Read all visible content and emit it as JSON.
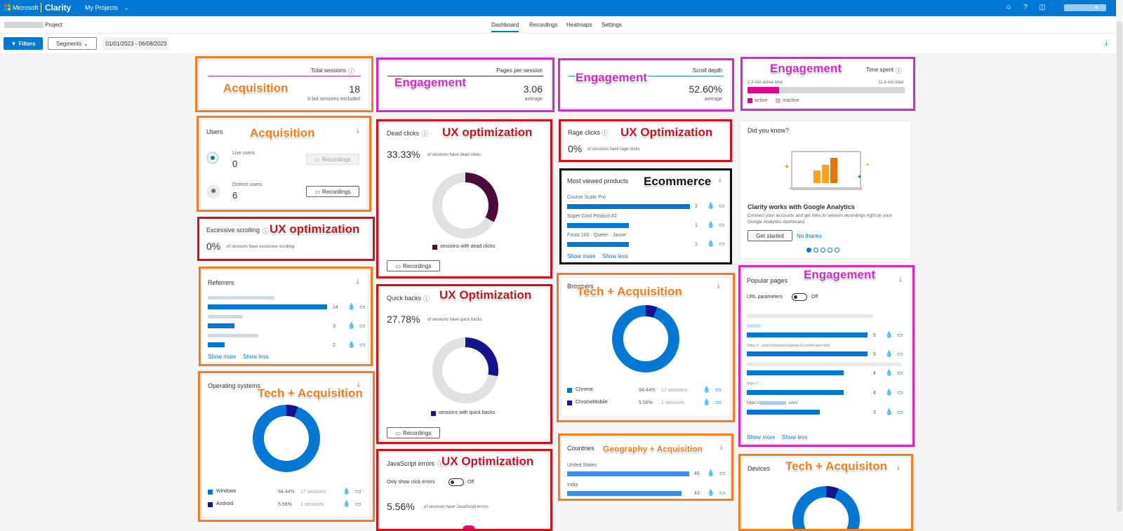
{
  "topbar": {
    "brand_ms": "Microsoft",
    "brand_clarity": "Clarity",
    "projects": "My Projects",
    "caret": "⌄",
    "user_caret": "e"
  },
  "secbar": {
    "project_label": "Project",
    "tabs": [
      "Dashboard",
      "Recordings",
      "Heatmaps",
      "Settings"
    ]
  },
  "toolbar": {
    "filters": "Filters",
    "segments": "Segments",
    "date_range": "01/01/2023 - 06/08/2023"
  },
  "cards": {
    "total_sessions": {
      "title": "Total sessions",
      "value": "18",
      "sub": "0 bot sessions excluded"
    },
    "pages_per_session": {
      "title": "Pages per session",
      "value": "3.06",
      "sub": "average"
    },
    "scroll_depth": {
      "title": "Scroll depth",
      "value": "52.60%",
      "sub": "average"
    },
    "time_spent": {
      "title": "Time spent",
      "active_text": "2.3 min active time",
      "total_text": "11.4 min total",
      "active_fraction": 0.2,
      "legend_active": "active",
      "legend_inactive": "inactive"
    },
    "users": {
      "title": "Users",
      "live_label": "Live users",
      "live_value": "0",
      "distinct_label": "Distinct users",
      "distinct_value": "6",
      "recordings": "Recordings"
    },
    "dead_clicks": {
      "title": "Dead clicks",
      "value": "33.33%",
      "sub": "of sessions have dead clicks",
      "legend": "sessions with dead clicks",
      "recordings": "Recordings",
      "fraction": 0.3333
    },
    "rage_clicks": {
      "title": "Rage clicks",
      "value": "0%",
      "sub": "of sessions have rage clicks"
    },
    "most_viewed": {
      "title": "Most viewed products",
      "items": [
        {
          "name": "Course Scale Pro",
          "count": "2"
        },
        {
          "name": "Super Cool Product #2",
          "count": "1"
        },
        {
          "name": "Fouta 100 · Queen · Jaune",
          "count": "1"
        }
      ],
      "show_more": "Show more",
      "show_less": "Show less"
    },
    "did_you_know": {
      "title": "Did you know?",
      "heading": "Clarity works with Google Analytics",
      "body": "Connect your accounts and get links to session recordings right on your Google Analytics dashboard.",
      "get_started": "Get started",
      "no_thanks": "No thanks"
    },
    "excessive_scrolling": {
      "title": "Excessive scrolling",
      "value": "0%",
      "sub": "of sessions have excessive scrolling"
    },
    "referrers": {
      "title": "Referrers",
      "counts": [
        "14",
        "3",
        "2"
      ],
      "show_more": "Show more",
      "show_less": "Show less"
    },
    "quick_backs": {
      "title": "Quick backs",
      "value": "27.78%",
      "sub": "of sessions have quick backs",
      "legend": "sessions with quick backs",
      "recordings": "Recordings",
      "fraction": 0.2778
    },
    "browsers": {
      "title": "Browsers",
      "items": [
        {
          "name": "Chrome",
          "pct": "94.44%",
          "sessions": "17 sessions"
        },
        {
          "name": "ChromeMobile",
          "pct": "5.56%",
          "sessions": "1 sessions"
        }
      ],
      "fraction": 0.0556
    },
    "popular_pages": {
      "title": "Popular pages",
      "url_params": "URL parameters",
      "toggle": "Off",
      "rows": [
        {
          "url": "",
          "count": "5"
        },
        {
          "url": "https://...anarovmipaonvapiegmit.com/leadership",
          "count": "5"
        },
        {
          "url": "",
          "count": "4"
        },
        {
          "url": "https://...",
          "count": "4"
        },
        {
          "url": "https://co",
          "url_end": ".com/",
          "count": "3"
        }
      ],
      "show_more": "Show more",
      "show_less": "Show less"
    },
    "operating_systems": {
      "title": "Operating systems",
      "items": [
        {
          "name": "Windows",
          "pct": "94.44%",
          "sessions": "17 sessions"
        },
        {
          "name": "Android",
          "pct": "5.56%",
          "sessions": "1 sessions"
        }
      ],
      "fraction": 0.0556
    },
    "js_errors": {
      "title": "JavaScript errors",
      "toggle_label": "Only show click errors",
      "toggle": "Off",
      "value": "5.56%",
      "sub": "of sessions have JavaScript errors"
    },
    "countries": {
      "title": "Countries",
      "items": [
        {
          "name": "United States",
          "count": "46"
        },
        {
          "name": "India",
          "count": "43"
        }
      ]
    },
    "devices": {
      "title": "Devices"
    }
  },
  "annotations": {
    "acquisition": "Acquisition",
    "engagement": "Engagement",
    "ux_opt_lower": "UX optimization",
    "ux_opt_upper": "UX Optimization",
    "ecommerce": "Ecommerce",
    "tech_acq": "Tech + Acquisition",
    "geo_acq": "Geography + Acquisition",
    "tech_acqi": "Tech + Acquisiton"
  },
  "colors": {
    "brand": "#0078d4",
    "orange": "#f07d20",
    "magenta": "#d428c8",
    "red": "#d0101c",
    "dead": "#4b0b3c",
    "dark_navy": "#14148c"
  }
}
